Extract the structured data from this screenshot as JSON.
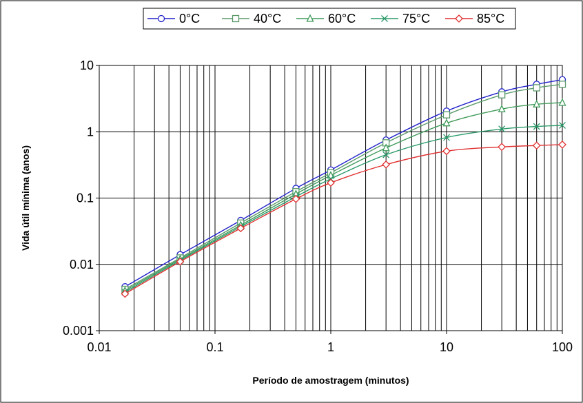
{
  "chart_data": {
    "type": "line",
    "xlabel": "Período de amostragem (minutos)",
    "ylabel": "Vida útil mínima (anos)",
    "x_scale": "log",
    "y_scale": "log",
    "xlim": [
      0.01,
      100
    ],
    "ylim": [
      0.001,
      10
    ],
    "x_ticks": [
      0.01,
      0.1,
      1,
      10,
      100
    ],
    "x_tick_labels": [
      "0.01",
      "0.1",
      "1",
      "10",
      "100"
    ],
    "y_ticks": [
      0.001,
      0.01,
      0.1,
      1,
      10
    ],
    "y_tick_labels": [
      "0.001",
      "0.01",
      "0.1",
      "1",
      "10"
    ],
    "grid": {
      "x_major": true,
      "x_minor": true,
      "y_major": true
    },
    "legend": "top",
    "x": [
      0.0167,
      0.05,
      0.1667,
      0.5,
      1,
      3,
      10,
      30,
      60,
      100
    ],
    "series": [
      {
        "name": "0°C",
        "color": "#2222cc",
        "marker": "circle",
        "values": [
          0.0046,
          0.014,
          0.046,
          0.14,
          0.265,
          0.75,
          2.05,
          4.0,
          5.2,
          6.1
        ]
      },
      {
        "name": "40°C",
        "color": "#5a9a6a",
        "marker": "square",
        "values": [
          0.0042,
          0.0125,
          0.042,
          0.125,
          0.24,
          0.68,
          1.8,
          3.6,
          4.6,
          5.2
        ]
      },
      {
        "name": "60°C",
        "color": "#3f9a5a",
        "marker": "triangle",
        "values": [
          0.004,
          0.012,
          0.039,
          0.115,
          0.22,
          0.57,
          1.35,
          2.2,
          2.6,
          2.75
        ]
      },
      {
        "name": "75°C",
        "color": "#2a9a6a",
        "marker": "x",
        "values": [
          0.0038,
          0.0115,
          0.037,
          0.105,
          0.195,
          0.45,
          0.82,
          1.1,
          1.2,
          1.25
        ]
      },
      {
        "name": "85°C",
        "color": "#e03030",
        "marker": "diamond",
        "values": [
          0.0036,
          0.011,
          0.035,
          0.097,
          0.17,
          0.32,
          0.51,
          0.59,
          0.62,
          0.64
        ]
      }
    ]
  }
}
